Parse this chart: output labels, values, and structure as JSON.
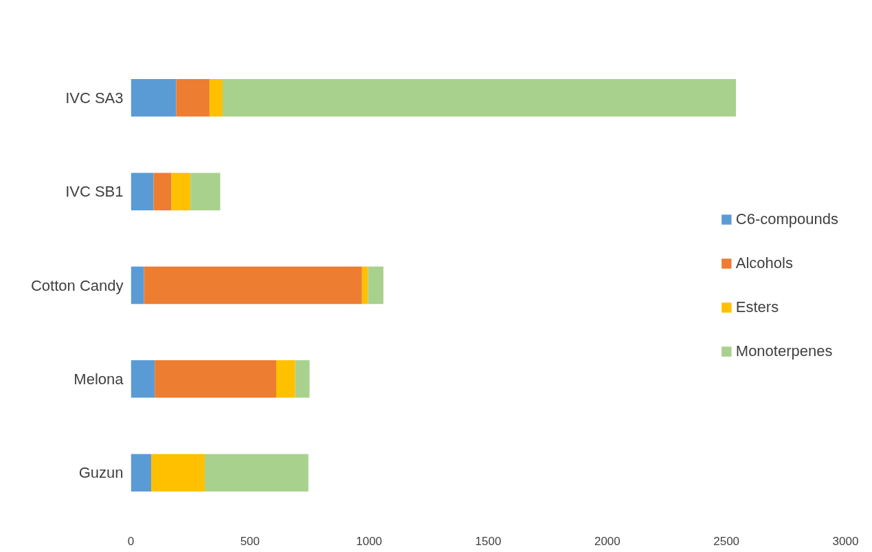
{
  "chart_data": {
    "type": "bar",
    "orientation": "horizontal",
    "stacked": true,
    "categories": [
      "IVC SA3",
      "IVC SB1",
      "Cotton Candy",
      "Melona",
      "Guzun"
    ],
    "series": [
      {
        "name": "C6-compounds",
        "color": "#5b9bd5",
        "values": [
          190,
          95,
          55,
          100,
          85
        ]
      },
      {
        "name": "Alcohols",
        "color": "#ed7d31",
        "values": [
          140,
          75,
          915,
          510,
          0
        ]
      },
      {
        "name": "Esters",
        "color": "#ffc000",
        "values": [
          55,
          80,
          25,
          80,
          225
        ]
      },
      {
        "name": "Monoterpenes",
        "color": "#a9d18e",
        "values": [
          2155,
          125,
          65,
          60,
          435
        ]
      }
    ],
    "xlim": [
      0,
      3000
    ],
    "xticks": [
      0,
      500,
      1000,
      1500,
      2000,
      2500,
      3000
    ],
    "grid": false,
    "legend": "right"
  }
}
